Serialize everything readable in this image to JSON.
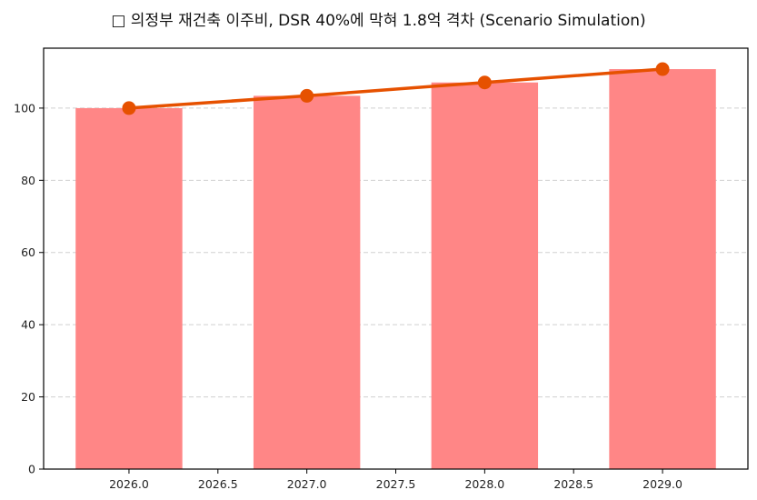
{
  "chart_data": {
    "type": "bar+line",
    "title": "□ 의정부 재건축 이주비, DSR 40%에 막혀 1.8억 격차 (Scenario Simulation)",
    "xlabel": "",
    "ylabel": "",
    "x": [
      2026,
      2027,
      2028,
      2029
    ],
    "series": [
      {
        "name": "bar",
        "kind": "bar",
        "color": "#ff8686",
        "values": [
          100.0,
          103.4,
          107.1,
          110.8
        ]
      },
      {
        "name": "line",
        "kind": "line",
        "color": "#e65100",
        "marker": "circle",
        "values": [
          100.0,
          103.4,
          107.1,
          110.8
        ]
      }
    ],
    "bar_width": 0.6,
    "xlim": [
      2025.52,
      2029.48
    ],
    "ylim": [
      0,
      116.6
    ],
    "x_ticks": [
      "2026.0",
      "2026.5",
      "2027.0",
      "2027.5",
      "2028.0",
      "2028.5",
      "2029.0"
    ],
    "x_tick_values": [
      2026.0,
      2026.5,
      2027.0,
      2027.5,
      2028.0,
      2028.5,
      2029.0
    ],
    "y_ticks": [
      "0",
      "20",
      "40",
      "60",
      "80",
      "100"
    ],
    "y_tick_values": [
      0,
      20,
      40,
      60,
      80,
      100
    ],
    "grid": {
      "axis": "y",
      "style": "dashed",
      "color": "#d0d0d0"
    },
    "legend": null
  }
}
